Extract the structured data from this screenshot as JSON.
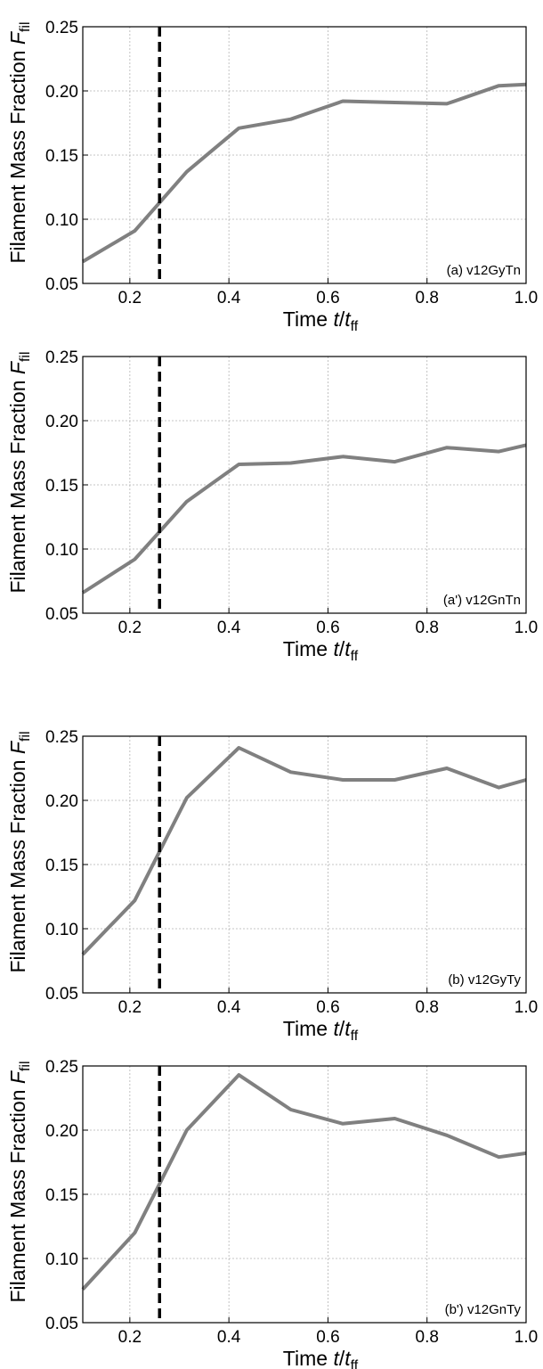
{
  "chart_data": [
    {
      "type": "line",
      "panel_label": "(a) v12GyTn",
      "xlabel": {
        "prefix": "Time ",
        "var": "t",
        "sep": "/",
        "sym": "t",
        "sub": "ff"
      },
      "ylabel": {
        "prefix": "Filament Mass Fraction ",
        "sym": "F",
        "sub": "fil"
      },
      "xlim": [
        0.105,
        1.0
      ],
      "ylim": [
        0.05,
        0.25
      ],
      "xticks": [
        0.2,
        0.4,
        0.6,
        0.8,
        1.0
      ],
      "xtick_labels": [
        "0.2",
        "0.4",
        "0.6",
        "0.8",
        "1.0"
      ],
      "yticks": [
        0.05,
        0.1,
        0.15,
        0.2,
        0.25
      ],
      "ytick_labels": [
        "0.05",
        "0.10",
        "0.15",
        "0.20",
        "0.25"
      ],
      "grid": true,
      "vline_x": 0.26,
      "series": [
        {
          "x": [
            0.105,
            0.21,
            0.315,
            0.42,
            0.525,
            0.63,
            0.735,
            0.84,
            0.945,
            1.0
          ],
          "y": [
            0.067,
            0.091,
            0.137,
            0.171,
            0.178,
            0.192,
            0.191,
            0.19,
            0.204,
            0.205
          ],
          "color": "#808080"
        }
      ]
    },
    {
      "type": "line",
      "panel_label": "(a') v12GnTn",
      "xlabel": {
        "prefix": "Time ",
        "var": "t",
        "sep": "/",
        "sym": "t",
        "sub": "ff"
      },
      "ylabel": {
        "prefix": "Filament Mass Fraction ",
        "sym": "F",
        "sub": "fil"
      },
      "xlim": [
        0.105,
        1.0
      ],
      "ylim": [
        0.05,
        0.25
      ],
      "xticks": [
        0.2,
        0.4,
        0.6,
        0.8,
        1.0
      ],
      "xtick_labels": [
        "0.2",
        "0.4",
        "0.6",
        "0.8",
        "1.0"
      ],
      "yticks": [
        0.05,
        0.1,
        0.15,
        0.2,
        0.25
      ],
      "ytick_labels": [
        "0.05",
        "0.10",
        "0.15",
        "0.20",
        "0.25"
      ],
      "grid": true,
      "vline_x": 0.26,
      "series": [
        {
          "x": [
            0.105,
            0.21,
            0.315,
            0.42,
            0.525,
            0.63,
            0.735,
            0.84,
            0.945,
            1.0
          ],
          "y": [
            0.066,
            0.092,
            0.137,
            0.166,
            0.167,
            0.172,
            0.168,
            0.179,
            0.176,
            0.181
          ],
          "color": "#808080"
        }
      ]
    },
    {
      "type": "line",
      "panel_label": "(b) v12GyTy",
      "xlabel": {
        "prefix": "Time ",
        "var": "t",
        "sep": "/",
        "sym": "t",
        "sub": "ff"
      },
      "ylabel": {
        "prefix": "Filament Mass Fraction ",
        "sym": "F",
        "sub": "fil"
      },
      "xlim": [
        0.105,
        1.0
      ],
      "ylim": [
        0.05,
        0.25
      ],
      "xticks": [
        0.2,
        0.4,
        0.6,
        0.8,
        1.0
      ],
      "xtick_labels": [
        "0.2",
        "0.4",
        "0.6",
        "0.8",
        "1.0"
      ],
      "yticks": [
        0.05,
        0.1,
        0.15,
        0.2,
        0.25
      ],
      "ytick_labels": [
        "0.05",
        "0.10",
        "0.15",
        "0.20",
        "0.25"
      ],
      "grid": true,
      "vline_x": 0.26,
      "series": [
        {
          "x": [
            0.105,
            0.21,
            0.315,
            0.42,
            0.525,
            0.63,
            0.735,
            0.84,
            0.945,
            1.0
          ],
          "y": [
            0.08,
            0.122,
            0.202,
            0.241,
            0.222,
            0.216,
            0.216,
            0.225,
            0.21,
            0.216
          ],
          "color": "#808080"
        }
      ]
    },
    {
      "type": "line",
      "panel_label": "(b') v12GnTy",
      "xlabel": {
        "prefix": "Time ",
        "var": "t",
        "sep": "/",
        "sym": "t",
        "sub": "ff"
      },
      "ylabel": {
        "prefix": "Filament Mass Fraction ",
        "sym": "F",
        "sub": "fil"
      },
      "xlim": [
        0.105,
        1.0
      ],
      "ylim": [
        0.05,
        0.25
      ],
      "xticks": [
        0.2,
        0.4,
        0.6,
        0.8,
        1.0
      ],
      "xtick_labels": [
        "0.2",
        "0.4",
        "0.6",
        "0.8",
        "1.0"
      ],
      "yticks": [
        0.05,
        0.1,
        0.15,
        0.2,
        0.25
      ],
      "ytick_labels": [
        "0.05",
        "0.10",
        "0.15",
        "0.20",
        "0.25"
      ],
      "grid": true,
      "vline_x": 0.26,
      "series": [
        {
          "x": [
            0.105,
            0.21,
            0.315,
            0.42,
            0.525,
            0.63,
            0.735,
            0.84,
            0.945,
            1.0
          ],
          "y": [
            0.076,
            0.12,
            0.2,
            0.243,
            0.216,
            0.205,
            0.209,
            0.196,
            0.179,
            0.182
          ],
          "color": "#808080"
        }
      ]
    }
  ]
}
